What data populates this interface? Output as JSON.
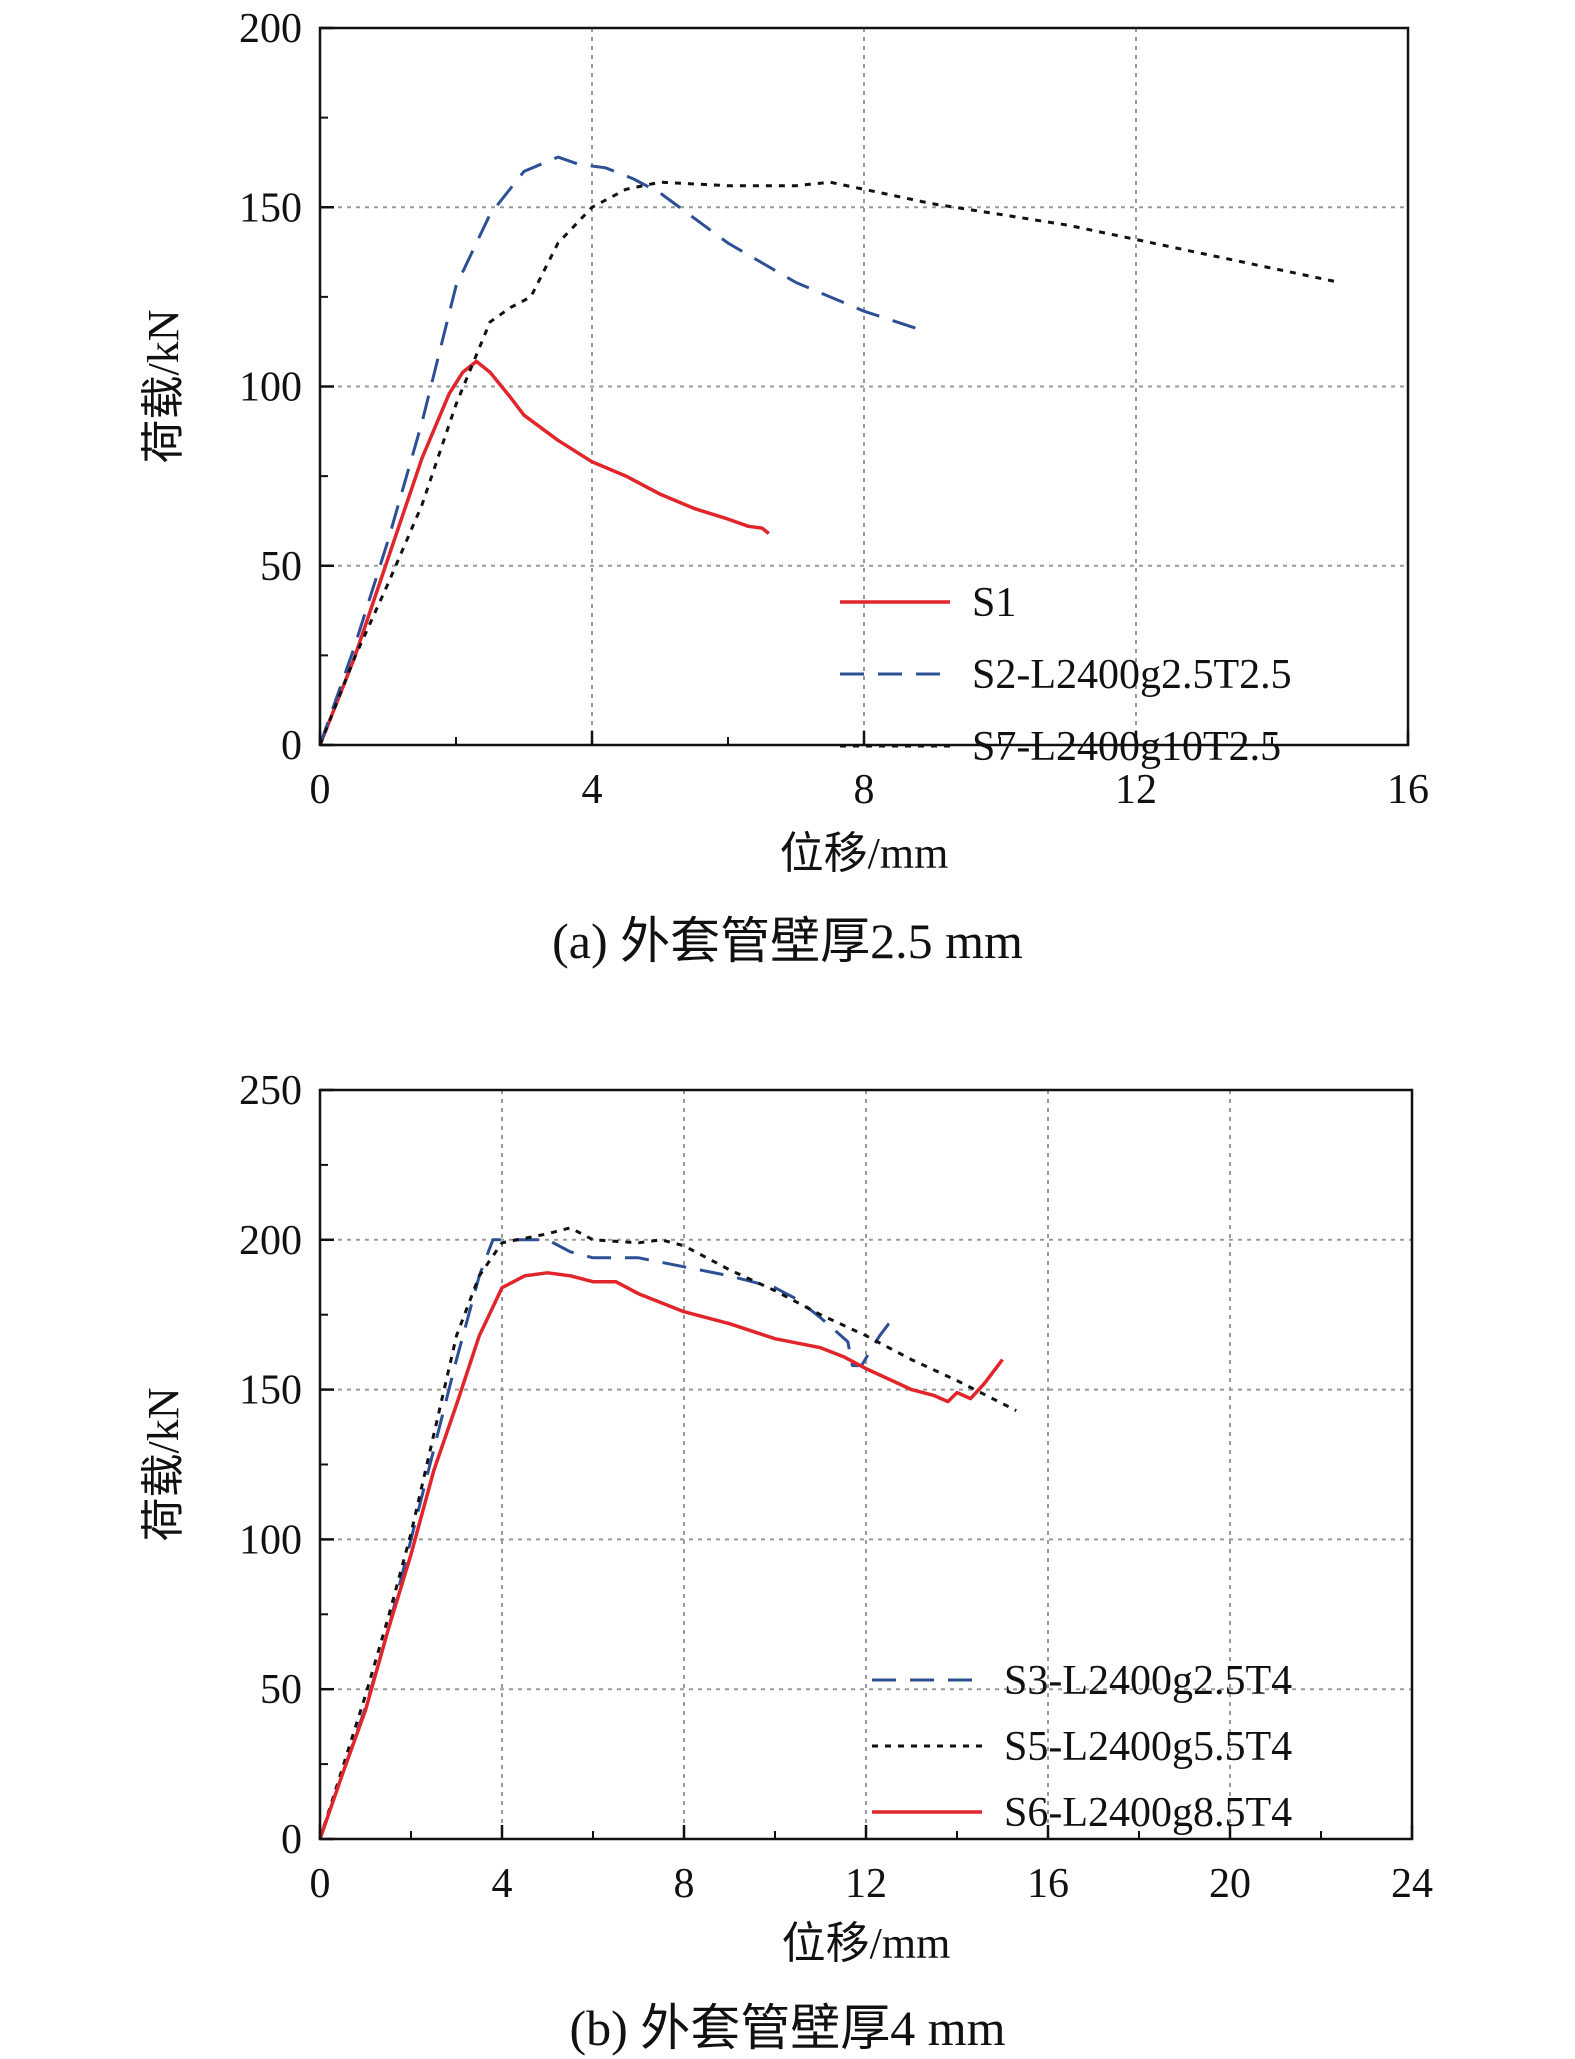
{
  "chart_data": [
    {
      "type": "line",
      "caption": "(a) 外套管壁厚2.5 mm",
      "xlabel": "位移/mm",
      "ylabel": "荷载/kN",
      "xlim": [
        0,
        16
      ],
      "ylim": [
        0,
        200
      ],
      "xticks": [
        0,
        4,
        8,
        12,
        16
      ],
      "yticks": [
        0,
        50,
        100,
        150,
        200
      ],
      "grid": true,
      "legend_position": "lower-right",
      "series": [
        {
          "name": "S1",
          "color": "#e0252b",
          "style": "solid",
          "x": [
            0,
            0.5,
            1.0,
            1.5,
            1.9,
            2.1,
            2.3,
            2.5,
            2.8,
            3.0,
            3.5,
            4.0,
            4.5,
            5.0,
            5.5,
            6.0,
            6.3,
            6.5,
            6.6
          ],
          "y": [
            0,
            24,
            52,
            80,
            98,
            104,
            107,
            104,
            97,
            92,
            85,
            79,
            75,
            70,
            66,
            63,
            61,
            60.5,
            59
          ]
        },
        {
          "name": "S2-L2400g2.5T2.5",
          "color": "#2c4f96",
          "style": "dashed",
          "x": [
            0,
            0.5,
            1.0,
            1.5,
            2.0,
            2.5,
            3.0,
            3.5,
            3.8,
            4.2,
            4.6,
            5.0,
            6.0,
            7.0,
            8.0,
            8.8
          ],
          "y": [
            0,
            27,
            57,
            90,
            128,
            148,
            160,
            164,
            162,
            161,
            158,
            154,
            140,
            129,
            121,
            116
          ]
        },
        {
          "name": "S7-L2400g10T2.5",
          "color": "#111111",
          "style": "dotted",
          "x": [
            0,
            0.5,
            1.0,
            1.5,
            2.0,
            2.5,
            2.8,
            3.1,
            3.5,
            4.0,
            4.5,
            5.0,
            6.0,
            7.0,
            7.5,
            8.0,
            9.0,
            10.0,
            11.0,
            12.0,
            13.0,
            14.0,
            15.0
          ],
          "y": [
            0,
            24,
            45,
            67,
            95,
            118,
            122,
            125,
            140,
            150,
            155,
            157,
            156,
            156,
            157,
            155,
            151,
            148,
            145,
            141,
            137,
            133,
            129
          ]
        }
      ]
    },
    {
      "type": "line",
      "caption": "(b) 外套管壁厚4 mm",
      "xlabel": "位移/mm",
      "ylabel": "荷载/kN",
      "xlim": [
        0,
        24
      ],
      "ylim": [
        0,
        250
      ],
      "xticks": [
        0,
        4,
        8,
        12,
        16,
        20,
        24
      ],
      "yticks": [
        0,
        50,
        100,
        150,
        200,
        250
      ],
      "grid": true,
      "legend_position": "lower-right",
      "series": [
        {
          "name": "S3-L2400g2.5T4",
          "color": "#2c4f96",
          "style": "dashed",
          "x": [
            0,
            0.5,
            1.0,
            1.5,
            2.0,
            2.5,
            3.0,
            3.5,
            3.8,
            4.0,
            5.0,
            5.5,
            6.0,
            7.0,
            8.0,
            9.0,
            10.0,
            10.5,
            11.0,
            11.3,
            11.6,
            11.7,
            11.9,
            12.1,
            12.3,
            12.5,
            12.7
          ],
          "y": [
            0,
            22,
            44,
            70,
            100,
            130,
            160,
            188,
            200,
            200,
            200,
            196,
            194,
            194,
            191,
            188,
            184,
            180,
            174,
            170,
            166,
            158,
            158,
            163,
            168,
            172,
            174
          ]
        },
        {
          "name": "S5-L2400g5.5T4",
          "color": "#111111",
          "style": "dotted",
          "x": [
            0,
            0.5,
            1.0,
            1.5,
            2.0,
            2.5,
            3.0,
            3.5,
            4.0,
            5.0,
            5.5,
            6.0,
            7.0,
            7.5,
            8.0,
            9.0,
            10.0,
            11.0,
            12.0,
            13.0,
            14.0,
            15.3
          ],
          "y": [
            0,
            24,
            48,
            74,
            102,
            135,
            168,
            188,
            199,
            202,
            204,
            200,
            199,
            200,
            198,
            190,
            183,
            175,
            168,
            160,
            153,
            143
          ]
        },
        {
          "name": "S6-L2400g8.5T4",
          "color": "#e0252b",
          "style": "solid",
          "x": [
            0,
            0.5,
            1.0,
            1.5,
            2.0,
            2.5,
            3.0,
            3.5,
            4.0,
            4.5,
            5.0,
            5.5,
            6.0,
            6.5,
            7.0,
            8.0,
            9.0,
            10.0,
            11.0,
            11.5,
            12.0,
            13.0,
            13.5,
            13.8,
            14.0,
            14.3,
            14.6,
            15.0
          ],
          "y": [
            0,
            22,
            43,
            70,
            95,
            123,
            145,
            168,
            184,
            188,
            189,
            188,
            186,
            186,
            182,
            176,
            172,
            167,
            164,
            161,
            157,
            150,
            148,
            146,
            149,
            147,
            152,
            160
          ]
        }
      ]
    }
  ]
}
